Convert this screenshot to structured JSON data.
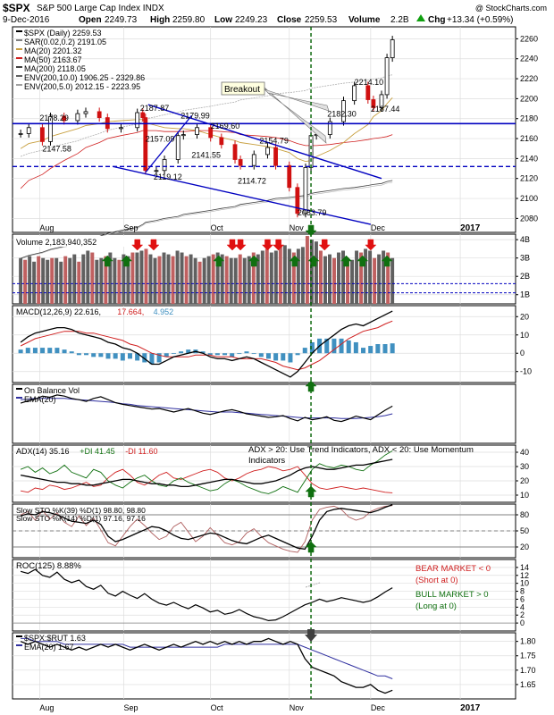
{
  "header": {
    "symbol": "$SPX",
    "name": "S&P 500 Large Cap Index INDX",
    "date": "9-Dec-2016",
    "open_label": "Open",
    "open": "2249.73",
    "high_label": "High",
    "high": "2259.80",
    "low_label": "Low",
    "low": "2249.23",
    "close_label": "Close",
    "close": "2259.53",
    "volume_label": "Volume",
    "volume": "2.2B",
    "chg_label": "Chg",
    "chg": "+13.34 (+0.59%)",
    "chg_icon": "up-triangle-icon",
    "watermark": "@ StockCharts.com"
  },
  "colors": {
    "price": "#000000",
    "ma20": "#c8a040",
    "ma50": "#d02020",
    "ma200": "#404040",
    "support": "#0000c0",
    "breakout_line": "#006000",
    "up_arrow": "#107010",
    "down_arrow": "#e01010",
    "volume_bar": "#606060",
    "volume_bar_red": "#c06060",
    "macd_hist": "#4090c0",
    "ema": "#3030a0",
    "grid": "#dddddd"
  },
  "x_axis": {
    "labels": [
      "Aug",
      "Sep",
      "Oct",
      "Nov",
      "Dec",
      "2017"
    ],
    "positions_date": [
      "2016-08-01",
      "2016-09-01",
      "2016-10-03",
      "2016-11-01",
      "2016-12-01",
      "2017-01-03"
    ]
  },
  "chart_data": [
    {
      "type": "line",
      "panel": "price",
      "legend": [
        {
          "label": "$SPX (Daily) 2259.53",
          "color": "#000000"
        },
        {
          "label": "SAR(0.02,0.2) 2191.05",
          "color": "#808080"
        },
        {
          "label": "MA(20) 2201.32",
          "color": "#c8a040"
        },
        {
          "label": "MA(50) 2163.67",
          "color": "#d02020"
        },
        {
          "label": "MA(200) 2118.05",
          "color": "#404040"
        },
        {
          "label": "ENV(200,10.0) 1906.25 - 2329.86",
          "color": "#606060"
        },
        {
          "label": "ENV(200,5.0) 2012.15 - 2223.95",
          "color": "#a0a0a0"
        }
      ],
      "ylim": [
        2066,
        2272
      ],
      "yticks": [
        2080,
        2100,
        2120,
        2140,
        2160,
        2180,
        2200,
        2220,
        2240,
        2260
      ],
      "x": [
        "2016-07-25",
        "2016-07-28",
        "2016-08-02",
        "2016-08-05",
        "2016-08-10",
        "2016-08-15",
        "2016-08-18",
        "2016-08-23",
        "2016-08-26",
        "2016-08-31",
        "2016-09-06",
        "2016-09-08",
        "2016-09-09",
        "2016-09-13",
        "2016-09-16",
        "2016-09-21",
        "2016-09-23",
        "2016-09-28",
        "2016-10-03",
        "2016-10-07",
        "2016-10-12",
        "2016-10-14",
        "2016-10-19",
        "2016-10-24",
        "2016-10-27",
        "2016-11-01",
        "2016-11-04",
        "2016-11-07",
        "2016-11-09",
        "2016-11-11",
        "2016-11-16",
        "2016-11-21",
        "2016-11-25",
        "2016-11-30",
        "2016-12-02",
        "2016-12-05",
        "2016-12-07",
        "2016-12-09"
      ],
      "close": [
        2165,
        2171,
        2157,
        2182,
        2178,
        2185,
        2187,
        2181,
        2170,
        2171,
        2186,
        2181,
        2128,
        2128,
        2139,
        2163,
        2164,
        2171,
        2161,
        2154,
        2139,
        2133,
        2144,
        2151,
        2133,
        2111,
        2085,
        2131,
        2163,
        2164,
        2177,
        2198,
        2213,
        2199,
        2191,
        2204,
        2241,
        2259
      ],
      "ma20": [
        2150,
        2155,
        2158,
        2162,
        2166,
        2170,
        2173,
        2175,
        2177,
        2178,
        2179,
        2179,
        2176,
        2173,
        2171,
        2170,
        2170,
        2168,
        2164,
        2161,
        2158,
        2156,
        2154,
        2152,
        2150,
        2146,
        2140,
        2137,
        2138,
        2142,
        2148,
        2156,
        2165,
        2174,
        2182,
        2188,
        2195,
        2201
      ],
      "ma50": [
        2110,
        2118,
        2124,
        2130,
        2138,
        2145,
        2151,
        2156,
        2160,
        2163,
        2166,
        2168,
        2168,
        2168,
        2167,
        2167,
        2167,
        2168,
        2168,
        2167,
        2166,
        2164,
        2163,
        2162,
        2161,
        2158,
        2155,
        2153,
        2153,
        2153,
        2154,
        2156,
        2157,
        2159,
        2160,
        2161,
        2162,
        2164
      ],
      "ma200": [
        2040,
        2043,
        2046,
        2049,
        2052,
        2055,
        2058,
        2062,
        2065,
        2068,
        2071,
        2074,
        2076,
        2078,
        2080,
        2082,
        2084,
        2086,
        2088,
        2090,
        2092,
        2094,
        2096,
        2098,
        2100,
        2101,
        2102,
        2103,
        2105,
        2106,
        2108,
        2110,
        2111,
        2113,
        2114,
        2115,
        2117,
        2118
      ],
      "annotations": [
        {
          "label": "2178.29",
          "x": "2016-08-01",
          "y": 2178
        },
        {
          "label": "2147.58",
          "x": "2016-08-02",
          "y": 2147
        },
        {
          "label": "2187.87",
          "x": "2016-09-07",
          "y": 2188
        },
        {
          "label": "2157.09",
          "x": "2016-09-09",
          "y": 2157
        },
        {
          "label": "2179.99",
          "x": "2016-09-22",
          "y": 2180
        },
        {
          "label": "2119.12",
          "x": "2016-09-12",
          "y": 2119
        },
        {
          "label": "2141.55",
          "x": "2016-09-26",
          "y": 2141
        },
        {
          "label": "2169.60",
          "x": "2016-10-03",
          "y": 2170
        },
        {
          "label": "2154.79",
          "x": "2016-10-21",
          "y": 2155
        },
        {
          "label": "2114.72",
          "x": "2016-10-13",
          "y": 2115
        },
        {
          "label": "2083.79",
          "x": "2016-11-04",
          "y": 2083
        },
        {
          "label": "2182.30",
          "x": "2016-11-15",
          "y": 2182
        },
        {
          "label": "2214.10",
          "x": "2016-11-25",
          "y": 2214
        },
        {
          "label": "2187.44",
          "x": "2016-12-01",
          "y": 2187
        }
      ],
      "breakout_label": "Breakout",
      "support_level": 2175,
      "dashed_support_level": 2132
    },
    {
      "type": "bar",
      "panel": "volume",
      "legend": "Volume 2,183,940,352",
      "ylim": [
        0.5,
        4.3
      ],
      "yticks": [
        {
          "v": 1,
          "label": "1B"
        },
        {
          "v": 2,
          "label": "2B"
        },
        {
          "v": 3,
          "label": "3B"
        },
        {
          "v": 4,
          "label": "4B"
        }
      ],
      "values": [
        3.0,
        2.9,
        3.1,
        2.8,
        3.1,
        3.0,
        2.9,
        3.0,
        3.0,
        2.8,
        3.1,
        3.0,
        3.2,
        2.8,
        3.2,
        3.4,
        3.3,
        2.9,
        3.0,
        3.1,
        3.3,
        3.0,
        2.9,
        3.2,
        3.1,
        3.3,
        3.3,
        3.4,
        3.5,
        3.2,
        3.0,
        3.1,
        3.3,
        3.2,
        3.1,
        3.4,
        3.3,
        3.1,
        3.2,
        3.0,
        2.8,
        3.0,
        3.1,
        3.2,
        3.3,
        3.2,
        3.1,
        3.0,
        3.0,
        3.2,
        3.0,
        3.1,
        3.3,
        3.2,
        3.4,
        3.5,
        3.3,
        3.4,
        3.6,
        3.7,
        3.5,
        3.3,
        3.5,
        3.6,
        4.2,
        4.0,
        3.9,
        3.4,
        3.1,
        3.2,
        3.0,
        3.3,
        3.4,
        3.0,
        2.9,
        3.4,
        3.3,
        3.5,
        3.4,
        3.0,
        3.2,
        3.4,
        3.3,
        3.0
      ],
      "avg_levels": [
        1.6,
        1.1
      ]
    },
    {
      "type": "line",
      "panel": "macd",
      "legend": [
        {
          "label": "MACD(12,26,9) 22.616,",
          "color": "#000000"
        },
        {
          "label": "17.664,",
          "color": "#d02020"
        },
        {
          "label": "4.952",
          "color": "#4090c0"
        }
      ],
      "ylim": [
        -16,
        26
      ],
      "yticks": [
        -10,
        0,
        10,
        20
      ],
      "macd": [
        6,
        9,
        11,
        12,
        13,
        14,
        14,
        13,
        11,
        10,
        9,
        8,
        6,
        5,
        3,
        2,
        0,
        -3,
        -6,
        -6,
        -4,
        -2,
        -1,
        0,
        1,
        0,
        -2,
        -3,
        -3,
        -4,
        -3,
        -2,
        -3,
        -5,
        -7,
        -9,
        -11,
        -13,
        -10,
        -5,
        0,
        4,
        7,
        10,
        13,
        15,
        16,
        15,
        17,
        19,
        21,
        23
      ],
      "signal": [
        4,
        6,
        8,
        9,
        10,
        11,
        12,
        12,
        12,
        11,
        11,
        10,
        9,
        8,
        7,
        5,
        4,
        2,
        0,
        -1,
        -2,
        -2,
        -2,
        -2,
        -1,
        -1,
        -1,
        -2,
        -2,
        -2,
        -3,
        -3,
        -3,
        -3,
        -4,
        -5,
        -7,
        -8,
        -9,
        -8,
        -6,
        -4,
        -1,
        2,
        5,
        8,
        10,
        12,
        13,
        14,
        16,
        17.6
      ]
    },
    {
      "type": "line",
      "panel": "obv",
      "legend": [
        {
          "label": "On Balance Vol",
          "color": "#000000"
        },
        {
          "label": "EMA(20)",
          "color": "#3030a0"
        }
      ],
      "ylim": [
        0,
        10
      ],
      "obv": [
        6.8,
        7.2,
        7.5,
        8.0,
        7.8,
        8.2,
        8.0,
        7.6,
        7.4,
        7.1,
        7.6,
        7.9,
        7.4,
        6.9,
        6.6,
        6.4,
        6.2,
        6.0,
        5.8,
        5.9,
        5.6,
        5.3,
        5.6,
        5.9,
        5.5,
        5.1,
        4.9,
        5.2,
        5.5,
        5.7,
        5.4,
        5.0,
        4.8,
        4.6,
        4.4,
        4.5,
        4.7,
        4.2,
        3.8,
        4.4,
        4.0,
        4.2,
        4.5,
        3.9,
        3.7,
        4.1,
        4.6,
        4.3,
        4.0,
        4.8,
        5.6,
        6.3
      ],
      "ema": [
        7.4,
        7.5,
        7.6,
        7.6,
        7.6,
        7.6,
        7.6,
        7.5,
        7.4,
        7.3,
        7.2,
        7.1,
        7.0,
        6.9,
        6.7,
        6.6,
        6.4,
        6.3,
        6.2,
        6.1,
        6.0,
        5.9,
        5.8,
        5.7,
        5.6,
        5.5,
        5.4,
        5.3,
        5.3,
        5.3,
        5.2,
        5.1,
        5.0,
        4.9,
        4.8,
        4.7,
        4.6,
        4.5,
        4.4,
        4.3,
        4.3,
        4.3,
        4.3,
        4.3,
        4.2,
        4.2,
        4.2,
        4.3,
        4.4,
        4.5,
        4.7,
        5.0
      ]
    },
    {
      "type": "line",
      "panel": "adx",
      "legend": [
        {
          "label": "ADX(14) 35.16",
          "color": "#000000"
        },
        {
          "label": "+DI 41.45",
          "color": "#107010"
        },
        {
          "label": "-DI 11.60",
          "color": "#d02020"
        }
      ],
      "note": "ADX > 20: Use Trend Indicators, ADX < 20: Use Momentum Indicators",
      "ylim": [
        5,
        45
      ],
      "yticks": [
        10,
        20,
        30,
        40
      ],
      "adx": [
        24,
        23,
        22,
        21,
        20,
        19,
        19,
        18,
        18,
        17,
        17,
        18,
        19,
        20,
        21,
        21,
        20,
        19,
        18,
        18,
        17,
        17,
        16,
        16,
        17,
        18,
        19,
        20,
        21,
        21,
        20,
        19,
        18,
        18,
        19,
        20,
        22,
        24,
        27,
        29,
        30,
        29,
        28,
        28,
        29,
        30,
        31,
        31,
        32,
        33,
        34,
        35
      ],
      "pdi": [
        28,
        30,
        26,
        29,
        25,
        27,
        31,
        26,
        24,
        22,
        28,
        26,
        20,
        17,
        15,
        19,
        22,
        24,
        20,
        17,
        16,
        20,
        22,
        19,
        17,
        15,
        13,
        14,
        18,
        21,
        19,
        16,
        14,
        12,
        11,
        13,
        16,
        14,
        12,
        20,
        28,
        32,
        30,
        29,
        31,
        30,
        28,
        27,
        31,
        34,
        38,
        41
      ],
      "mdi": [
        13,
        12,
        15,
        14,
        17,
        16,
        14,
        15,
        17,
        19,
        16,
        17,
        22,
        26,
        28,
        24,
        19,
        17,
        20,
        24,
        26,
        22,
        21,
        23,
        25,
        27,
        28,
        26,
        22,
        20,
        22,
        25,
        27,
        28,
        30,
        29,
        27,
        28,
        30,
        24,
        18,
        15,
        14,
        15,
        16,
        15,
        14,
        15,
        14,
        13,
        12,
        11.6
      ]
    },
    {
      "type": "line",
      "panel": "stochastic",
      "legend": [
        {
          "label": "Slow STO %K(39) %D(1) 98.80, 98.80",
          "color": "#000000"
        },
        {
          "label": "Slow STO %K(14) %D(1) 97.16, 97.16",
          "color": "#b06060"
        }
      ],
      "ylim": [
        0,
        100
      ],
      "yticks": [
        20,
        50,
        80
      ],
      "k39": [
        78,
        82,
        80,
        86,
        84,
        80,
        74,
        68,
        66,
        64,
        70,
        62,
        40,
        30,
        34,
        40,
        46,
        52,
        58,
        56,
        50,
        42,
        36,
        34,
        38,
        42,
        46,
        44,
        38,
        32,
        28,
        26,
        32,
        38,
        42,
        36,
        30,
        24,
        18,
        16,
        40,
        70,
        86,
        90,
        92,
        90,
        88,
        86,
        84,
        88,
        94,
        98.8
      ],
      "k14": [
        80,
        86,
        70,
        88,
        72,
        84,
        66,
        58,
        78,
        60,
        74,
        52,
        28,
        22,
        40,
        58,
        72,
        60,
        46,
        34,
        40,
        58,
        66,
        48,
        30,
        40,
        56,
        42,
        28,
        24,
        30,
        46,
        54,
        40,
        28,
        22,
        16,
        12,
        10,
        30,
        70,
        90,
        94,
        96,
        90,
        76,
        70,
        74,
        86,
        92,
        96,
        97.2
      ]
    },
    {
      "type": "line",
      "panel": "roc",
      "legend": "ROC(125) 8.88%",
      "ylim": [
        -2,
        16
      ],
      "yticks": [
        0,
        2,
        4,
        6,
        8,
        10,
        12,
        14
      ],
      "bear_note": [
        "BEAR MARKET < 0",
        "(Short at 0)"
      ],
      "bull_note": [
        "BULL MARKET > 0",
        "(Long at 0)"
      ],
      "roc": [
        13,
        12.5,
        13.5,
        12,
        11.5,
        12.8,
        11,
        10.2,
        10.8,
        9.2,
        8.5,
        9.5,
        7.5,
        6.8,
        8,
        7,
        6.2,
        7.4,
        6,
        5,
        4.5,
        5.2,
        4.3,
        3.6,
        4.6,
        3.8,
        2.8,
        3.2,
        2.2,
        2.6,
        3.4,
        2.4,
        1.6,
        1.2,
        0.6,
        0.8,
        1.6,
        2.6,
        3.6,
        4.6,
        5.2,
        6,
        5.4,
        5.8,
        6.4,
        6,
        5.6,
        5.2,
        5.6,
        6.6,
        7.8,
        8.9
      ]
    },
    {
      "type": "line",
      "panel": "ratio",
      "legend": [
        {
          "label": "$SPX:$RUT 1.63",
          "color": "#000000"
        },
        {
          "label": "EMA(20) 1.67",
          "color": "#3030a0"
        }
      ],
      "ylim": [
        1.6,
        1.83
      ],
      "yticks": [
        1.65,
        1.7,
        1.75,
        1.8
      ],
      "ratio": [
        1.8,
        1.79,
        1.8,
        1.79,
        1.78,
        1.79,
        1.78,
        1.77,
        1.78,
        1.77,
        1.78,
        1.79,
        1.78,
        1.79,
        1.78,
        1.77,
        1.78,
        1.79,
        1.78,
        1.77,
        1.78,
        1.79,
        1.78,
        1.79,
        1.8,
        1.79,
        1.8,
        1.79,
        1.8,
        1.79,
        1.8,
        1.79,
        1.8,
        1.8,
        1.81,
        1.8,
        1.79,
        1.8,
        1.79,
        1.74,
        1.71,
        1.7,
        1.69,
        1.68,
        1.66,
        1.65,
        1.64,
        1.64,
        1.65,
        1.63,
        1.62,
        1.63
      ],
      "ema": [
        1.81,
        1.81,
        1.8,
        1.8,
        1.8,
        1.8,
        1.79,
        1.79,
        1.79,
        1.79,
        1.79,
        1.79,
        1.79,
        1.79,
        1.79,
        1.78,
        1.78,
        1.78,
        1.78,
        1.78,
        1.78,
        1.78,
        1.78,
        1.78,
        1.78,
        1.78,
        1.78,
        1.78,
        1.79,
        1.79,
        1.79,
        1.79,
        1.79,
        1.79,
        1.79,
        1.79,
        1.79,
        1.79,
        1.79,
        1.78,
        1.77,
        1.76,
        1.75,
        1.74,
        1.73,
        1.72,
        1.71,
        1.7,
        1.69,
        1.68,
        1.68,
        1.67
      ]
    }
  ]
}
